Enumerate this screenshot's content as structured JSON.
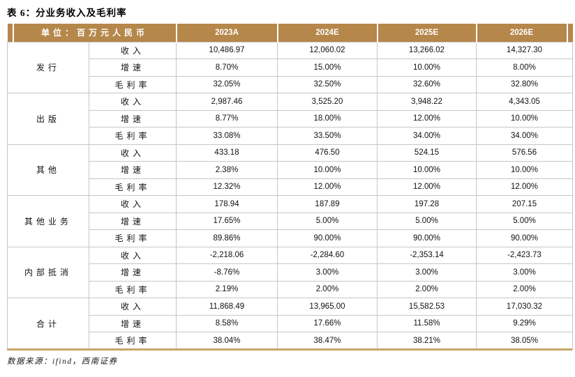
{
  "title": "表 6：分业务收入及毛利率",
  "footer": {
    "source": "数据来源：ifind，西南证券"
  },
  "colors": {
    "header_bg": "#B5874A",
    "header_text": "#FFFFFF",
    "grid_line": "#C6C6C6",
    "bottom_rule": "#C9A468",
    "text": "#111111"
  },
  "table": {
    "unit_header": "单位：百万元人民币",
    "year_headers": [
      "2023A",
      "2024E",
      "2025E",
      "2026E"
    ],
    "groups": [
      {
        "label": "发行",
        "metrics": [
          {
            "label": "收入",
            "values": [
              "10,486.97",
              "12,060.02",
              "13,266.02",
              "14,327.30"
            ]
          },
          {
            "label": "增速",
            "values": [
              "8.70%",
              "15.00%",
              "10.00%",
              "8.00%"
            ]
          },
          {
            "label": "毛利率",
            "values": [
              "32.05%",
              "32.50%",
              "32.60%",
              "32.80%"
            ]
          }
        ]
      },
      {
        "label": "出版",
        "metrics": [
          {
            "label": "收入",
            "values": [
              "2,987.46",
              "3,525.20",
              "3,948.22",
              "4,343.05"
            ]
          },
          {
            "label": "增速",
            "values": [
              "8.77%",
              "18.00%",
              "12.00%",
              "10.00%"
            ]
          },
          {
            "label": "毛利率",
            "values": [
              "33.08%",
              "33.50%",
              "34.00%",
              "34.00%"
            ]
          }
        ]
      },
      {
        "label": "其他",
        "metrics": [
          {
            "label": "收入",
            "values": [
              "433.18",
              "476.50",
              "524.15",
              "576.56"
            ]
          },
          {
            "label": "增速",
            "values": [
              "2.38%",
              "10.00%",
              "10.00%",
              "10.00%"
            ]
          },
          {
            "label": "毛利率",
            "values": [
              "12.32%",
              "12.00%",
              "12.00%",
              "12.00%"
            ]
          }
        ]
      },
      {
        "label": "其他业务",
        "metrics": [
          {
            "label": "收入",
            "values": [
              "178.94",
              "187.89",
              "197.28",
              "207.15"
            ]
          },
          {
            "label": "增速",
            "values": [
              "17.65%",
              "5.00%",
              "5.00%",
              "5.00%"
            ]
          },
          {
            "label": "毛利率",
            "values": [
              "89.86%",
              "90.00%",
              "90.00%",
              "90.00%"
            ]
          }
        ]
      },
      {
        "label": "内部抵消",
        "metrics": [
          {
            "label": "收入",
            "values": [
              "-2,218.06",
              "-2,284.60",
              "-2,353.14",
              "-2,423.73"
            ]
          },
          {
            "label": "增速",
            "values": [
              "-8.76%",
              "3.00%",
              "3.00%",
              "3.00%"
            ]
          },
          {
            "label": "毛利率",
            "values": [
              "2.19%",
              "2.00%",
              "2.00%",
              "2.00%"
            ]
          }
        ]
      },
      {
        "label": "合计",
        "metrics": [
          {
            "label": "收入",
            "values": [
              "11,868.49",
              "13,965.00",
              "15,582.53",
              "17,030.32"
            ]
          },
          {
            "label": "增速",
            "values": [
              "8.58%",
              "17.66%",
              "11.58%",
              "9.29%"
            ]
          },
          {
            "label": "毛利率",
            "values": [
              "38.04%",
              "38.47%",
              "38.21%",
              "38.05%"
            ]
          }
        ]
      }
    ]
  }
}
